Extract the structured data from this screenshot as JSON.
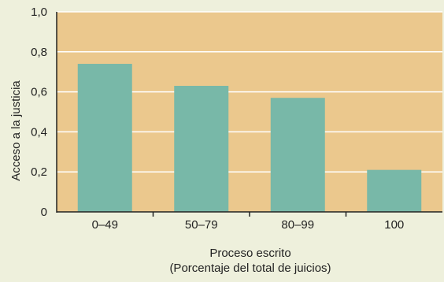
{
  "colors": {
    "page_background": "#eef0dc",
    "plot_background": "#ebc88d",
    "bar": "#78b8a8",
    "grid": "#ffffff",
    "axis": "#222222"
  },
  "chart_data": {
    "type": "bar",
    "categories": [
      "0–49",
      "50–79",
      "80–99",
      "100"
    ],
    "values": [
      0.74,
      0.63,
      0.57,
      0.21
    ],
    "ylabel": "Acceso a la justicia",
    "xlabel_line1": "Proceso escrito",
    "xlabel_line2": "(Porcentaje del total de juicios)",
    "ylim": [
      0,
      1.0
    ],
    "yticks": [
      {
        "value": 0,
        "label": "0"
      },
      {
        "value": 0.2,
        "label": "0,2"
      },
      {
        "value": 0.4,
        "label": "0,4"
      },
      {
        "value": 0.6,
        "label": "0,6"
      },
      {
        "value": 0.8,
        "label": "0,8"
      },
      {
        "value": 1.0,
        "label": "1,0"
      }
    ],
    "grid": true,
    "legend": "none"
  }
}
